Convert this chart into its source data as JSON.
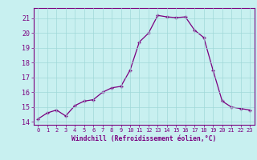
{
  "x": [
    0,
    1,
    2,
    3,
    4,
    5,
    6,
    7,
    8,
    9,
    10,
    11,
    12,
    13,
    14,
    15,
    16,
    17,
    18,
    19,
    20,
    21,
    22,
    23
  ],
  "y": [
    14.2,
    14.6,
    14.8,
    14.4,
    15.1,
    15.4,
    15.5,
    16.0,
    16.3,
    16.4,
    17.5,
    19.4,
    20.0,
    21.2,
    21.1,
    21.05,
    21.1,
    20.2,
    19.7,
    17.5,
    15.4,
    15.0,
    14.9,
    14.8
  ],
  "line_color": "#7b0080",
  "marker": "+",
  "marker_color": "#7b0080",
  "bg_color": "#c8f0f0",
  "grid_color": "#a0d8d8",
  "xlabel": "Windchill (Refroidissement éolien,°C)",
  "ylim": [
    13.8,
    21.7
  ],
  "xlim": [
    -0.5,
    23.5
  ],
  "yticks": [
    14,
    15,
    16,
    17,
    18,
    19,
    20,
    21
  ],
  "xticks": [
    0,
    1,
    2,
    3,
    4,
    5,
    6,
    7,
    8,
    9,
    10,
    11,
    12,
    13,
    14,
    15,
    16,
    17,
    18,
    19,
    20,
    21,
    22,
    23
  ],
  "tick_label_color": "#7b0080",
  "xlabel_color": "#7b0080",
  "spine_color": "#7b0080"
}
